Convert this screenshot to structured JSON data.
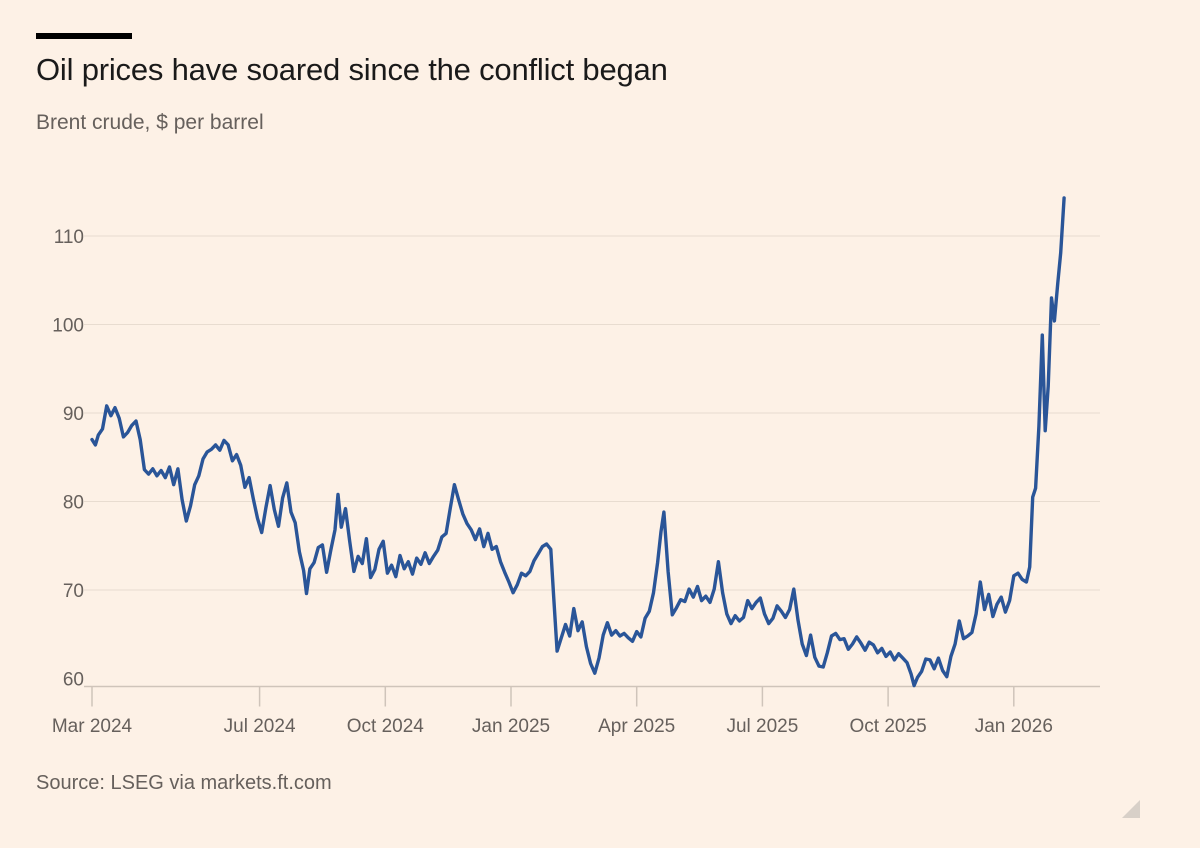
{
  "header": {
    "title": "Oil prices have soared since the conflict began",
    "subtitle": "Brent crude, $ per barrel"
  },
  "footer": {
    "source": "Source: LSEG via markets.ft.com"
  },
  "colors": {
    "background": "#fdf1e6",
    "line": "#2a5598",
    "gridline": "#e8dcd0",
    "axis_text": "#66605c"
  },
  "chart_data": {
    "type": "line",
    "title": "Oil prices have soared since the conflict began",
    "ylabel": "Brent crude, $ per barrel",
    "xlabel": "",
    "ylim": [
      58,
      115
    ],
    "y_ticks": [
      60,
      70,
      80,
      90,
      100,
      110
    ],
    "x_ticks": [
      {
        "label": "Mar 2024",
        "t": 0
      },
      {
        "label": "Jul 2024",
        "t": 4
      },
      {
        "label": "Oct 2024",
        "t": 7
      },
      {
        "label": "Jan 2025",
        "t": 10
      },
      {
        "label": "Apr 2025",
        "t": 13
      },
      {
        "label": "Jul 2025",
        "t": 16
      },
      {
        "label": "Oct 2025",
        "t": 19
      },
      {
        "label": "Jan 2026",
        "t": 22
      }
    ],
    "x_range_months": [
      0,
      24.6
    ],
    "series": [
      {
        "name": "Brent crude",
        "points": [
          [
            0.0,
            87.0
          ],
          [
            0.08,
            86.4
          ],
          [
            0.15,
            87.5
          ],
          [
            0.25,
            88.2
          ],
          [
            0.35,
            90.8
          ],
          [
            0.45,
            89.7
          ],
          [
            0.55,
            90.6
          ],
          [
            0.65,
            89.4
          ],
          [
            0.75,
            87.3
          ],
          [
            0.85,
            87.8
          ],
          [
            0.95,
            88.6
          ],
          [
            1.05,
            89.1
          ],
          [
            1.15,
            87.0
          ],
          [
            1.25,
            83.6
          ],
          [
            1.35,
            83.1
          ],
          [
            1.45,
            83.7
          ],
          [
            1.55,
            82.9
          ],
          [
            1.65,
            83.5
          ],
          [
            1.75,
            82.7
          ],
          [
            1.85,
            83.9
          ],
          [
            1.95,
            81.9
          ],
          [
            2.05,
            83.7
          ],
          [
            2.15,
            80.2
          ],
          [
            2.25,
            77.8
          ],
          [
            2.35,
            79.5
          ],
          [
            2.45,
            81.9
          ],
          [
            2.55,
            82.9
          ],
          [
            2.65,
            84.8
          ],
          [
            2.75,
            85.6
          ],
          [
            2.85,
            85.9
          ],
          [
            2.95,
            86.4
          ],
          [
            3.05,
            85.8
          ],
          [
            3.15,
            86.9
          ],
          [
            3.25,
            86.4
          ],
          [
            3.35,
            84.6
          ],
          [
            3.45,
            85.3
          ],
          [
            3.55,
            84.1
          ],
          [
            3.65,
            81.6
          ],
          [
            3.75,
            82.7
          ],
          [
            3.85,
            80.3
          ],
          [
            3.95,
            78.1
          ],
          [
            4.05,
            76.5
          ],
          [
            4.15,
            79.3
          ],
          [
            4.25,
            81.8
          ],
          [
            4.35,
            79.1
          ],
          [
            4.45,
            77.2
          ],
          [
            4.55,
            80.4
          ],
          [
            4.65,
            82.1
          ],
          [
            4.75,
            78.8
          ],
          [
            4.85,
            77.6
          ],
          [
            4.95,
            74.3
          ],
          [
            5.05,
            72.2
          ],
          [
            5.12,
            69.6
          ],
          [
            5.2,
            72.4
          ],
          [
            5.3,
            73.1
          ],
          [
            5.4,
            74.8
          ],
          [
            5.5,
            75.1
          ],
          [
            5.6,
            72.0
          ],
          [
            5.7,
            74.5
          ],
          [
            5.8,
            76.8
          ],
          [
            5.87,
            80.8
          ],
          [
            5.95,
            77.1
          ],
          [
            6.05,
            79.2
          ],
          [
            6.15,
            75.5
          ],
          [
            6.25,
            72.1
          ],
          [
            6.35,
            73.8
          ],
          [
            6.45,
            73.0
          ],
          [
            6.55,
            75.8
          ],
          [
            6.65,
            71.4
          ],
          [
            6.75,
            72.3
          ],
          [
            6.85,
            74.6
          ],
          [
            6.95,
            75.5
          ],
          [
            7.05,
            71.9
          ],
          [
            7.15,
            72.8
          ],
          [
            7.25,
            71.5
          ],
          [
            7.35,
            73.9
          ],
          [
            7.45,
            72.4
          ],
          [
            7.55,
            73.2
          ],
          [
            7.65,
            71.8
          ],
          [
            7.75,
            73.6
          ],
          [
            7.85,
            72.9
          ],
          [
            7.95,
            74.2
          ],
          [
            8.05,
            73.0
          ],
          [
            8.15,
            73.8
          ],
          [
            8.25,
            74.5
          ],
          [
            8.35,
            76.0
          ],
          [
            8.45,
            76.4
          ],
          [
            8.55,
            79.2
          ],
          [
            8.65,
            81.9
          ],
          [
            8.75,
            80.2
          ],
          [
            8.85,
            78.6
          ],
          [
            8.95,
            77.5
          ],
          [
            9.05,
            76.8
          ],
          [
            9.15,
            75.7
          ],
          [
            9.25,
            76.9
          ],
          [
            9.35,
            74.9
          ],
          [
            9.45,
            76.4
          ],
          [
            9.55,
            74.6
          ],
          [
            9.65,
            74.9
          ],
          [
            9.75,
            73.2
          ],
          [
            9.85,
            72.0
          ],
          [
            9.95,
            70.9
          ],
          [
            10.05,
            69.7
          ],
          [
            10.15,
            70.6
          ],
          [
            10.25,
            71.9
          ],
          [
            10.35,
            71.6
          ],
          [
            10.45,
            72.1
          ],
          [
            10.55,
            73.3
          ],
          [
            10.65,
            74.1
          ],
          [
            10.75,
            74.9
          ],
          [
            10.85,
            75.2
          ],
          [
            10.95,
            74.6
          ],
          [
            11.02,
            69.2
          ],
          [
            11.1,
            63.1
          ],
          [
            11.2,
            64.6
          ],
          [
            11.3,
            66.1
          ],
          [
            11.4,
            64.8
          ],
          [
            11.5,
            67.9
          ],
          [
            11.6,
            65.4
          ],
          [
            11.7,
            66.4
          ],
          [
            11.8,
            63.6
          ],
          [
            11.9,
            61.7
          ],
          [
            12.0,
            60.6
          ],
          [
            12.1,
            62.3
          ],
          [
            12.2,
            64.9
          ],
          [
            12.3,
            66.3
          ],
          [
            12.4,
            64.9
          ],
          [
            12.5,
            65.4
          ],
          [
            12.6,
            64.8
          ],
          [
            12.7,
            65.1
          ],
          [
            12.8,
            64.6
          ],
          [
            12.9,
            64.2
          ],
          [
            13.0,
            65.3
          ],
          [
            13.1,
            64.7
          ],
          [
            13.2,
            66.8
          ],
          [
            13.3,
            67.6
          ],
          [
            13.4,
            69.7
          ],
          [
            13.5,
            73.1
          ],
          [
            13.58,
            76.6
          ],
          [
            13.65,
            78.8
          ],
          [
            13.75,
            72.1
          ],
          [
            13.85,
            67.2
          ],
          [
            13.95,
            68.0
          ],
          [
            14.05,
            68.9
          ],
          [
            14.15,
            68.7
          ],
          [
            14.25,
            70.1
          ],
          [
            14.35,
            69.2
          ],
          [
            14.45,
            70.4
          ],
          [
            14.55,
            68.8
          ],
          [
            14.65,
            69.3
          ],
          [
            14.75,
            68.6
          ],
          [
            14.85,
            70.1
          ],
          [
            14.95,
            73.2
          ],
          [
            15.05,
            69.7
          ],
          [
            15.15,
            67.3
          ],
          [
            15.25,
            66.2
          ],
          [
            15.35,
            67.1
          ],
          [
            15.45,
            66.5
          ],
          [
            15.55,
            66.9
          ],
          [
            15.65,
            68.8
          ],
          [
            15.75,
            67.9
          ],
          [
            15.85,
            68.6
          ],
          [
            15.95,
            69.1
          ],
          [
            16.05,
            67.3
          ],
          [
            16.15,
            66.2
          ],
          [
            16.25,
            66.8
          ],
          [
            16.35,
            68.2
          ],
          [
            16.45,
            67.6
          ],
          [
            16.55,
            66.9
          ],
          [
            16.65,
            67.8
          ],
          [
            16.75,
            70.1
          ],
          [
            16.85,
            66.6
          ],
          [
            16.95,
            63.9
          ],
          [
            17.05,
            62.6
          ],
          [
            17.15,
            64.9
          ],
          [
            17.25,
            62.4
          ],
          [
            17.35,
            61.4
          ],
          [
            17.45,
            61.3
          ],
          [
            17.55,
            62.9
          ],
          [
            17.65,
            64.8
          ],
          [
            17.75,
            65.1
          ],
          [
            17.85,
            64.4
          ],
          [
            17.95,
            64.5
          ],
          [
            18.05,
            63.3
          ],
          [
            18.15,
            63.9
          ],
          [
            18.25,
            64.7
          ],
          [
            18.35,
            64.0
          ],
          [
            18.45,
            63.2
          ],
          [
            18.55,
            64.1
          ],
          [
            18.65,
            63.8
          ],
          [
            18.75,
            62.9
          ],
          [
            18.85,
            63.4
          ],
          [
            18.95,
            62.5
          ],
          [
            19.05,
            63.0
          ],
          [
            19.15,
            62.1
          ],
          [
            19.25,
            62.8
          ],
          [
            19.35,
            62.3
          ],
          [
            19.45,
            61.8
          ],
          [
            19.55,
            60.5
          ],
          [
            19.62,
            59.2
          ],
          [
            19.7,
            60.1
          ],
          [
            19.8,
            60.8
          ],
          [
            19.9,
            62.2
          ],
          [
            20.0,
            62.1
          ],
          [
            20.1,
            61.1
          ],
          [
            20.2,
            62.3
          ],
          [
            20.3,
            60.9
          ],
          [
            20.4,
            60.2
          ],
          [
            20.5,
            62.5
          ],
          [
            20.6,
            63.9
          ],
          [
            20.7,
            66.5
          ],
          [
            20.8,
            64.5
          ],
          [
            20.9,
            64.8
          ],
          [
            21.0,
            65.2
          ],
          [
            21.1,
            67.3
          ],
          [
            21.2,
            70.9
          ],
          [
            21.3,
            67.8
          ],
          [
            21.4,
            69.5
          ],
          [
            21.5,
            67.0
          ],
          [
            21.6,
            68.4
          ],
          [
            21.7,
            69.2
          ],
          [
            21.8,
            67.5
          ],
          [
            21.9,
            68.8
          ],
          [
            22.0,
            71.6
          ],
          [
            22.1,
            71.9
          ],
          [
            22.2,
            71.2
          ],
          [
            22.3,
            70.9
          ],
          [
            22.38,
            72.6
          ],
          [
            22.45,
            80.5
          ],
          [
            22.52,
            81.5
          ],
          [
            22.6,
            88.5
          ],
          [
            22.68,
            98.8
          ],
          [
            22.75,
            88.0
          ],
          [
            22.82,
            93.0
          ],
          [
            22.9,
            103.0
          ],
          [
            22.97,
            100.4
          ],
          [
            23.05,
            104.7
          ],
          [
            23.12,
            108.1
          ],
          [
            23.2,
            114.3
          ]
        ]
      }
    ]
  }
}
